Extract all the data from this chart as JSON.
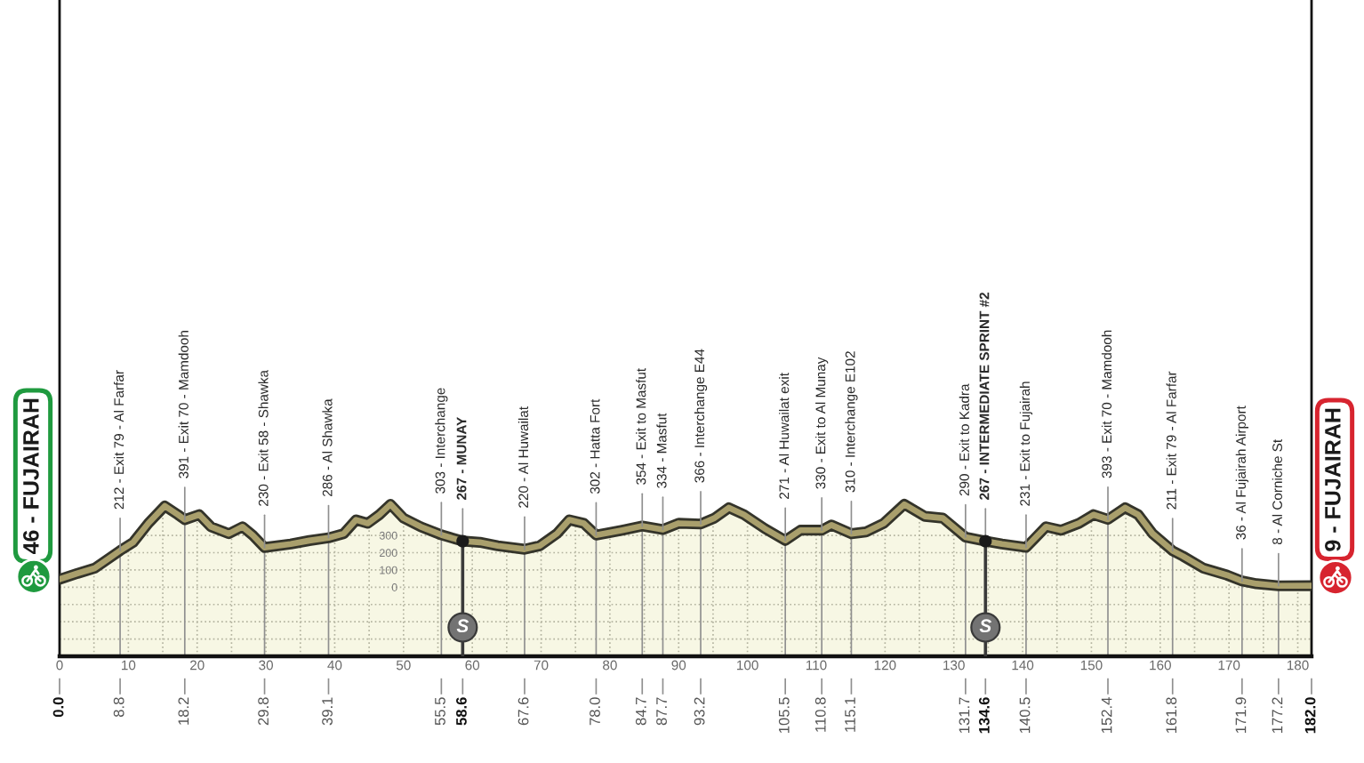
{
  "chart_data": {
    "type": "area",
    "xlim": [
      0,
      182
    ],
    "xticks": [
      0,
      {
        "value": 5,
        "label": null
      },
      10,
      {
        "value": 15,
        "label": null
      },
      20,
      {
        "value": 25,
        "label": null
      },
      30,
      {
        "value": 35,
        "label": null
      },
      40,
      {
        "value": 45,
        "label": null
      },
      50,
      {
        "value": 55,
        "label": null
      },
      60,
      {
        "value": 65,
        "label": null
      },
      70,
      {
        "value": 75,
        "label": null
      },
      80,
      {
        "value": 85,
        "label": null
      },
      90,
      {
        "value": 95,
        "label": null
      },
      100,
      {
        "value": 105,
        "label": null
      },
      110,
      {
        "value": 115,
        "label": null
      },
      120,
      {
        "value": 125,
        "label": null
      },
      130,
      {
        "value": 135,
        "label": null
      },
      140,
      {
        "value": 145,
        "label": null
      },
      150,
      {
        "value": 155,
        "label": null
      },
      160,
      {
        "value": 165,
        "label": null
      },
      170,
      {
        "value": 175,
        "label": null
      },
      180
    ],
    "x2lim": [
      0,
      182
    ],
    "x2ticks": [
      {
        "value": 0,
        "label": "0.0"
      },
      8.8,
      18.2,
      29.8,
      39.1,
      55.5,
      58.6,
      67.6,
      {
        "value": 78,
        "label": "78.0"
      },
      84.7,
      87.7,
      93.2,
      105.5,
      110.8,
      115.1,
      131.7,
      134.6,
      140.5,
      152.4,
      161.8,
      171.9,
      177.2,
      {
        "value": 182,
        "label": "182.0"
      }
    ],
    "ylim": [
      -400,
      3400
    ],
    "yticks": [
      {
        "value": -300,
        "label": null
      },
      {
        "value": -200,
        "label": null
      },
      {
        "value": -100,
        "label": null
      },
      0,
      100,
      200,
      300
    ],
    "grid": true,
    "series": [
      {
        "color": "#f7f7e4",
        "x": [
          0,
          2.6,
          5.1,
          7.3,
          8.8,
          10.7,
          12.9,
          15.3,
          17.2,
          18.2,
          20.3,
          22,
          24.6,
          26.6,
          28.1,
          29.8,
          33.6,
          36.3,
          39.1,
          41.3,
          43.1,
          44.8,
          46.5,
          48.1,
          50,
          52.5,
          55.5,
          58.6,
          61.1,
          63.7,
          67.6,
          69.8,
          72.3,
          74.1,
          76.2,
          78,
          81.8,
          84.7,
          87.7,
          90,
          93.2,
          95.2,
          97.3,
          99.5,
          102.5,
          105.5,
          107.7,
          110.8,
          112.2,
          115.1,
          117.2,
          119.8,
          122.8,
          125.8,
          128.4,
          131.7,
          134.6,
          137,
          140.5,
          141.7,
          143.4,
          145.6,
          148.2,
          150.3,
          152.4,
          154.9,
          156.8,
          158.9,
          161.8,
          163.3,
          166.3,
          169.7,
          171.9,
          174,
          177.2,
          182
        ],
        "values": [
          46,
          80,
          110,
          170,
          212,
          260,
          370,
          470,
          420,
          391,
          420,
          350,
          310,
          350,
          300,
          230,
          250,
          270,
          286,
          310,
          390,
          370,
          420,
          480,
          400,
          350,
          303,
          267,
          260,
          240,
          220,
          240,
          310,
          390,
          370,
          302,
          330,
          354,
          334,
          370,
          366,
          400,
          460,
          420,
          340,
          271,
          330,
          330,
          360,
          310,
          320,
          370,
          480,
          410,
          400,
          290,
          267,
          250,
          231,
          280,
          350,
          330,
          370,
          420,
          393,
          460,
          420,
          310,
          211,
          180,
          110,
          70,
          36,
          20,
          8,
          9
        ]
      },
      {
        "type": "scatter",
        "color": "#1a1a1a",
        "marker": "circle",
        "x": [
          58.6,
          134.6
        ],
        "values": [
          267,
          267
        ]
      }
    ],
    "bands": [
      {
        "axis": "y",
        "from": -400,
        "to": 0,
        "color": "#f7f7e4"
      }
    ],
    "ref_lines": [
      {
        "axis": "x",
        "value": 58.6,
        "label": "S",
        "color": "#3a3a3a"
      },
      {
        "axis": "x",
        "value": 134.6,
        "label": "S",
        "color": "#3a3a3a"
      }
    ],
    "annotations": [
      {
        "text": "46 - FUJAIRAH",
        "x": 0,
        "y": 46
      },
      {
        "text": "212 - Exit 79 - Al Farfar",
        "x": 8.8,
        "y": 212
      },
      {
        "text": "391 - Exit 70 - Mamdooh",
        "x": 18.2,
        "y": 391
      },
      {
        "text": "230 - Exit 58 - Shawka",
        "x": 29.8,
        "y": 230
      },
      {
        "text": "286 - Al Shawka",
        "x": 39.1,
        "y": 286
      },
      {
        "text": "303 - Interchange",
        "x": 55.5,
        "y": 303
      },
      {
        "text": "267 - MUNAY",
        "x": 58.6,
        "y": 267
      },
      {
        "text": "220 - Al Huwailat",
        "x": 67.6,
        "y": 220
      },
      {
        "text": "302 - Hatta Fort",
        "x": 78,
        "y": 302
      },
      {
        "text": "354 - Exit to Masfut",
        "x": 84.7,
        "y": 354
      },
      {
        "text": "334 - Masfut",
        "x": 87.7,
        "y": 334
      },
      {
        "text": "366 - Interchange E44",
        "x": 93.2,
        "y": 366
      },
      {
        "text": "271 - Al Huwailat exit",
        "x": 105.5,
        "y": 271
      },
      {
        "text": "330 - Exit to Al Munay",
        "x": 110.8,
        "y": 330
      },
      {
        "text": "310 - Interchange E102",
        "x": 115.1,
        "y": 310
      },
      {
        "text": "290 - Exit to Kadra",
        "x": 131.7,
        "y": 290
      },
      {
        "text": "267 - INTERMEDIATE SPRINT #2",
        "x": 134.6,
        "y": 267
      },
      {
        "text": "231 - Exit to Fujairah",
        "x": 140.5,
        "y": 231
      },
      {
        "text": "393 - Exit 70 - Mamdooh",
        "x": 152.4,
        "y": 393
      },
      {
        "text": "211 - Exit 79 - Al Farfar",
        "x": 161.8,
        "y": 211
      },
      {
        "text": "36 - Al Fujairah Airport",
        "x": 171.9,
        "y": 36
      },
      {
        "text": "8 - Al Corniche St",
        "x": 177.2,
        "y": 8
      },
      {
        "text": "9 - FUJAIRAH",
        "x": 182,
        "y": 9
      }
    ]
  }
}
